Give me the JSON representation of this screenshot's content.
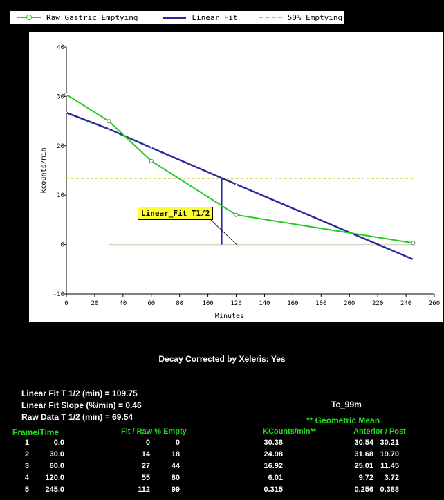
{
  "legend": {
    "raw": "Raw Gastric Emptying",
    "fit": "Linear Fit",
    "half": "50% Emptying"
  },
  "colors": {
    "raw": "#22cc22",
    "fit": "#2a2aa0",
    "half": "#d4c028",
    "baseline": "#d8d8c0",
    "text_green": "#22dd22"
  },
  "annotation": "Linear_Fit T1/2",
  "chart_data": {
    "type": "line",
    "xlabel": "Minutes",
    "ylabel": "kcounts/min",
    "xlim": [
      0,
      260
    ],
    "ylim": [
      -10,
      40
    ],
    "xticks": [
      0,
      20,
      40,
      60,
      80,
      100,
      120,
      140,
      160,
      180,
      200,
      220,
      240,
      260
    ],
    "yticks": [
      -10,
      0,
      10,
      20,
      30,
      40
    ],
    "legend_position": "top",
    "grid": false,
    "series": [
      {
        "name": "Raw Gastric Emptying",
        "x": [
          0,
          30,
          60,
          120,
          245
        ],
        "y": [
          30.38,
          24.98,
          16.92,
          6.01,
          0.315
        ]
      },
      {
        "name": "Linear Fit",
        "x": [
          0,
          30,
          60,
          120,
          245
        ],
        "y": [
          26.7,
          23.4,
          19.6,
          12.2,
          -3.0
        ]
      },
      {
        "name": "50% Emptying",
        "x": [
          0,
          245
        ],
        "y": [
          13.4,
          13.4
        ]
      }
    ],
    "baseline": {
      "x": [
        30,
        245
      ],
      "y": [
        0,
        0
      ]
    },
    "t_half_marker": {
      "x": 109.75,
      "y_from": 0,
      "y_to": 13.4
    }
  },
  "decay_text": "Decay Corrected by Xeleris: Yes",
  "stats": {
    "fit_half": "Linear Fit T 1/2 (min) = 109.75",
    "slope": "Linear Fit Slope (%/min) = 0.46",
    "raw_half": "Raw Data T 1/2 (min) = 69.54"
  },
  "isotope": "Tc_99m",
  "geo_mean": "** Geometric Mean",
  "table": {
    "headers": {
      "frame": "Frame/Time",
      "fit_raw": "Fit / Raw % Empty",
      "kcounts": "KCounts/min**",
      "ant_post": "Anterior / Post"
    },
    "rows": [
      [
        "1",
        "0.0",
        "0",
        "0",
        "30.38",
        "30.54",
        "30.21"
      ],
      [
        "2",
        "30.0",
        "14",
        "18",
        "24.98",
        "31.68",
        "19.70"
      ],
      [
        "3",
        "60.0",
        "27",
        "44",
        "16.92",
        "25.01",
        "11.45"
      ],
      [
        "4",
        "120.0",
        "55",
        "80",
        "6.01",
        "9.72",
        "3.72"
      ],
      [
        "5",
        "245.0",
        "112",
        "99",
        "0.315",
        "0.256",
        "0.388"
      ]
    ]
  }
}
